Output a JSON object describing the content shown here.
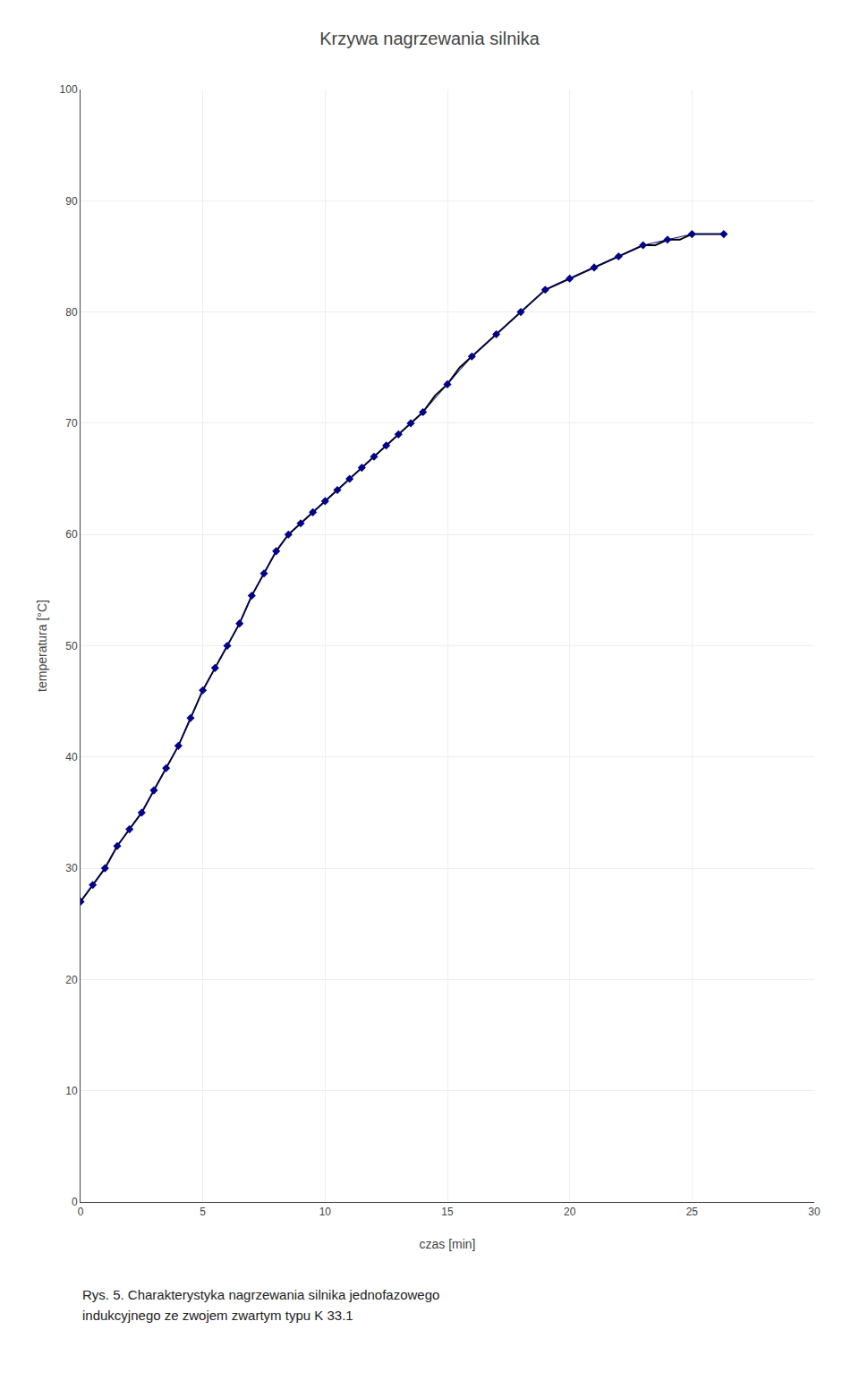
{
  "chart_data": {
    "type": "line",
    "title": "Krzywa nagrzewania silnika",
    "x_label": "czas [min]",
    "y_label": "temperatura [°C]",
    "xlim": [
      0,
      30
    ],
    "ylim": [
      0,
      100
    ],
    "xticks": [
      0,
      5,
      10,
      15,
      20,
      25,
      30
    ],
    "yticks": [
      0,
      10,
      20,
      30,
      40,
      50,
      60,
      70,
      80,
      90,
      100
    ],
    "grid": true,
    "legend": false,
    "annotations": [
      "Rys. 5. Charakterystyka nagrzewania silnika jednofazowego",
      "indukcyjnego ze zwojem zwartym typu K 33.1"
    ],
    "series": [
      {
        "type": "line",
        "color": "#000000",
        "line_style": "solid",
        "x": [
          0,
          0.5,
          1.0,
          1.5,
          2.0,
          2.5,
          3.0,
          3.5,
          4.0,
          4.5,
          5.0,
          5.5,
          6.0,
          6.5,
          7.0,
          7.5,
          8.0,
          8.5,
          9.0,
          9.5,
          10.0,
          10.5,
          11.0,
          11.5,
          12.0,
          12.5,
          13.0,
          13.5,
          14.0,
          14.5,
          15.0,
          15.5,
          16.0,
          16.5,
          17.0,
          17.5,
          18.0,
          18.5,
          19.0,
          19.5,
          20.0,
          20.5,
          21.0,
          21.5,
          22.0,
          22.5,
          23.0,
          23.5,
          24.0,
          24.5,
          25.0,
          25.5,
          26.3
        ],
        "values": [
          27,
          28.5,
          30,
          32,
          33.5,
          35,
          37,
          39,
          41,
          43.5,
          46,
          48,
          50,
          52,
          54.5,
          56.5,
          58.5,
          60,
          61,
          62,
          63,
          64,
          65,
          66,
          67,
          68,
          69,
          70,
          71,
          72.5,
          73.5,
          75,
          76,
          77,
          78,
          79,
          80,
          81,
          82,
          82.5,
          83,
          83.5,
          84,
          84.5,
          85,
          85.5,
          86,
          86,
          86.5,
          86.5,
          87,
          87,
          87
        ]
      },
      {
        "type": "line",
        "color": "#00008B",
        "line_style": "solid",
        "marker": "diamond",
        "x": [
          0,
          0.5,
          1.0,
          1.5,
          2.0,
          2.5,
          3.0,
          3.5,
          4.0,
          4.5,
          5.0,
          5.5,
          6.0,
          6.5,
          7.0,
          7.5,
          8.0,
          8.5,
          9.0,
          9.5,
          10.0,
          10.5,
          11.0,
          11.5,
          12.0,
          12.5,
          13.0,
          13.5,
          14.0,
          15.0,
          16.0,
          17.0,
          18.0,
          19.0,
          20.0,
          21.0,
          22.0,
          23.0,
          24.0,
          25.0,
          26.3
        ],
        "values": [
          27,
          28.5,
          30,
          32,
          33.5,
          35,
          37,
          39,
          41,
          43.5,
          46,
          48,
          50,
          52,
          54.5,
          56.5,
          58.5,
          60,
          61,
          62,
          63,
          64,
          65,
          66,
          67,
          68,
          69,
          70,
          71,
          73.5,
          76,
          78,
          80,
          82,
          83,
          84,
          85,
          86,
          86.5,
          87,
          87
        ]
      }
    ]
  }
}
